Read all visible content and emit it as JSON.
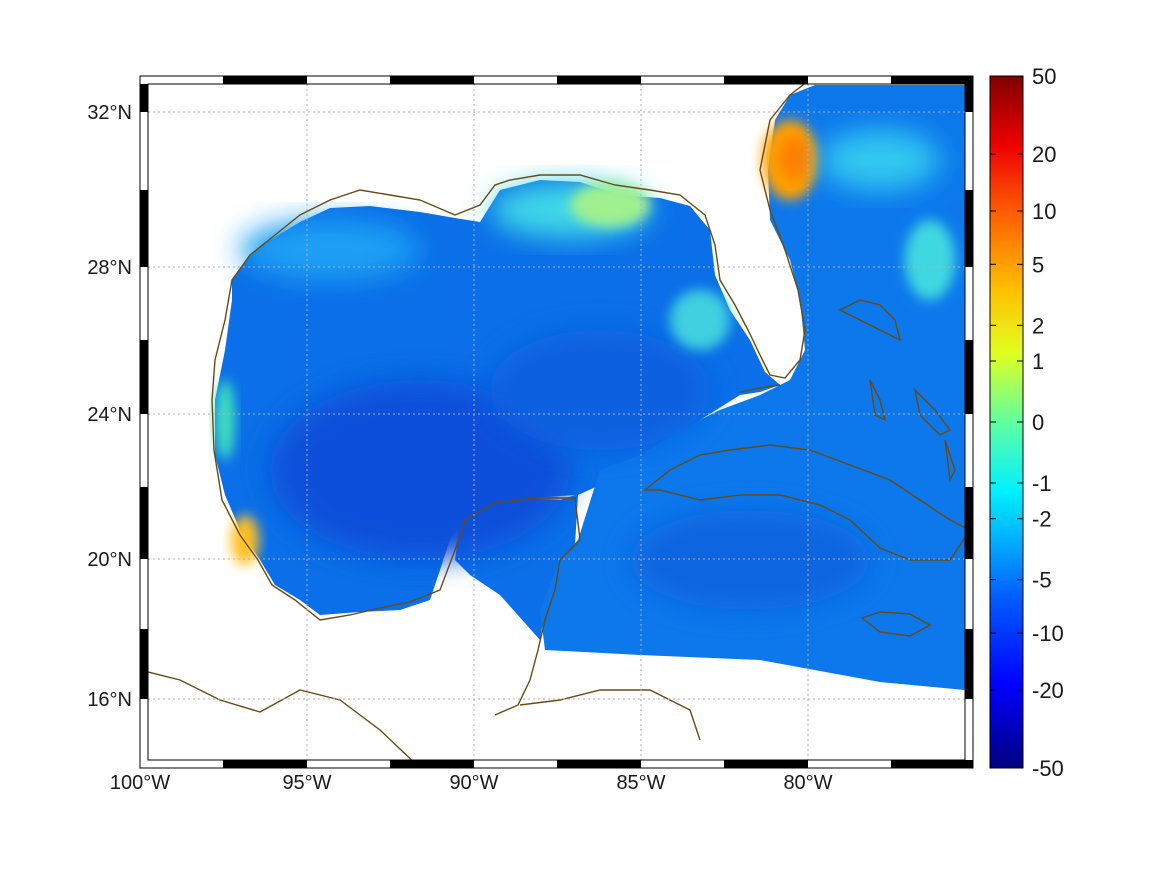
{
  "map": {
    "projection": "mercator",
    "lon_range": [
      -100,
      -75
    ],
    "lat_range": [
      14.3,
      33
    ],
    "gridlines": true,
    "land_color": "#ffffff",
    "coast_color": "#6b4a12",
    "frame_style": "black-white checkered border"
  },
  "axes": {
    "x_ticks": [
      {
        "value": -100,
        "label": "100°W"
      },
      {
        "value": -95,
        "label": "95°W"
      },
      {
        "value": -90,
        "label": "90°W"
      },
      {
        "value": -85,
        "label": "85°W"
      },
      {
        "value": -80,
        "label": "80°W"
      }
    ],
    "y_ticks": [
      {
        "value": 32,
        "label": "32°N"
      },
      {
        "value": 28,
        "label": "28°N"
      },
      {
        "value": 24,
        "label": "24°N"
      },
      {
        "value": 20,
        "label": "20°N"
      },
      {
        "value": 16,
        "label": "16°N"
      }
    ]
  },
  "colorbar": {
    "colormap": "jet",
    "scale": "symmetric-log",
    "range": [
      -50,
      50
    ],
    "ticks": [
      {
        "value": 50,
        "label": "50"
      },
      {
        "value": 20,
        "label": "20"
      },
      {
        "value": 10,
        "label": "10"
      },
      {
        "value": 5,
        "label": "5"
      },
      {
        "value": 2,
        "label": "2"
      },
      {
        "value": 1,
        "label": "1"
      },
      {
        "value": 0,
        "label": "0"
      },
      {
        "value": -1,
        "label": "-1"
      },
      {
        "value": -2,
        "label": "-2"
      },
      {
        "value": -5,
        "label": "-5"
      },
      {
        "value": -10,
        "label": "-10"
      },
      {
        "value": -20,
        "label": "-20"
      },
      {
        "value": -50,
        "label": "-50"
      }
    ]
  },
  "field_features": [
    {
      "name": "deep-gulf",
      "approx_value": -6
    },
    {
      "name": "northern-shelf",
      "approx_value": -1.5
    },
    {
      "name": "florida-east-coast-hotspot",
      "approx_value": 5
    },
    {
      "name": "veracruz-coast-hotspot",
      "approx_value": 3
    },
    {
      "name": "caribbean",
      "approx_value": -4
    }
  ],
  "colors": {
    "jet_stops": [
      "#00008f",
      "#0000ff",
      "#0080ff",
      "#00ffff",
      "#80ff80",
      "#ffff00",
      "#ff8000",
      "#ff0000",
      "#800000"
    ],
    "ocean_base": "#0a6fe8"
  }
}
